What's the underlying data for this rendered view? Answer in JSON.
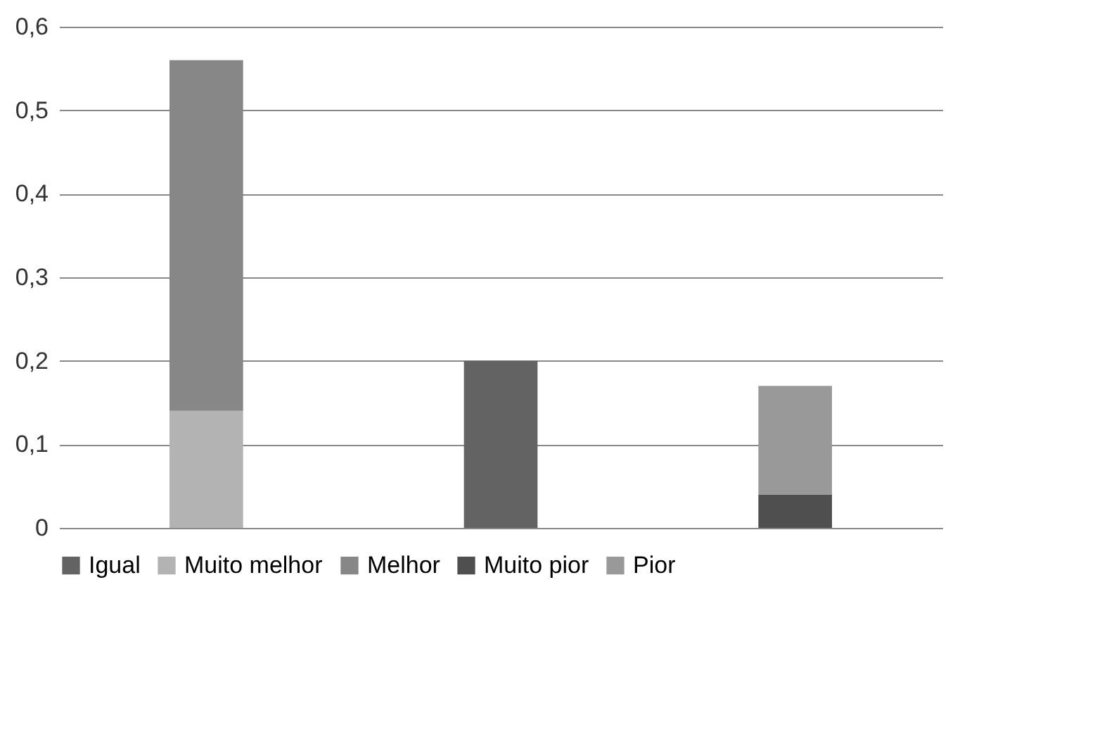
{
  "chart_data": {
    "type": "bar",
    "stacked": true,
    "categories": [
      null,
      null,
      null
    ],
    "series": [
      {
        "name": "Igual",
        "color": "#636363",
        "values": [
          null,
          0.2,
          null
        ]
      },
      {
        "name": "Muito melhor",
        "color": "#b3b3b3",
        "values": [
          0.14,
          null,
          null
        ]
      },
      {
        "name": "Melhor",
        "color": "#878787",
        "values": [
          0.42,
          null,
          null
        ]
      },
      {
        "name": "Muito pior",
        "color": "#4f4f4f",
        "values": [
          null,
          null,
          0.04
        ]
      },
      {
        "name": "Pior",
        "color": "#999999",
        "values": [
          null,
          null,
          0.13
        ]
      }
    ],
    "ylim": [
      0,
      0.6
    ],
    "yticks": [
      0,
      {
        "value": 0.1,
        "label": "0,1"
      },
      {
        "value": 0.2,
        "label": "0,2"
      },
      {
        "value": 0.3,
        "label": "0,3"
      },
      {
        "value": 0.4,
        "label": "0,4"
      },
      {
        "value": 0.5,
        "label": "0,5"
      },
      {
        "value": 0.6,
        "label": "0,6"
      }
    ],
    "grid": "y",
    "legend": "bottom",
    "tick_labels": "y"
  }
}
